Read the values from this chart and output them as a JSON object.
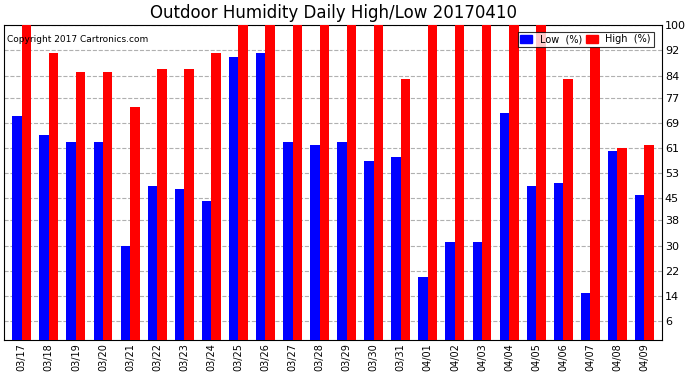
{
  "title": "Outdoor Humidity Daily High/Low 20170410",
  "copyright": "Copyright 2017 Cartronics.com",
  "dates": [
    "03/17",
    "03/18",
    "03/19",
    "03/20",
    "03/21",
    "03/22",
    "03/23",
    "03/24",
    "03/25",
    "03/26",
    "03/27",
    "03/28",
    "03/29",
    "03/30",
    "03/31",
    "04/01",
    "04/02",
    "04/03",
    "04/04",
    "04/05",
    "04/06",
    "04/07",
    "04/08",
    "04/09"
  ],
  "high": [
    100,
    91,
    85,
    85,
    74,
    86,
    86,
    91,
    100,
    100,
    100,
    100,
    100,
    100,
    83,
    100,
    100,
    100,
    100,
    100,
    83,
    93,
    61,
    62
  ],
  "low": [
    71,
    65,
    63,
    63,
    30,
    49,
    48,
    44,
    90,
    91,
    63,
    62,
    63,
    57,
    58,
    20,
    31,
    31,
    72,
    49,
    50,
    15,
    60,
    46
  ],
  "ylim": [
    0,
    100
  ],
  "yticks": [
    6,
    14,
    22,
    30,
    38,
    45,
    53,
    61,
    69,
    77,
    84,
    92,
    100
  ],
  "high_color": "#ff0000",
  "low_color": "#0000ff",
  "bg_color": "#ffffff",
  "grid_color": "#b0b0b0",
  "title_fontsize": 12,
  "bar_width": 0.35,
  "figwidth": 6.9,
  "figheight": 3.75,
  "dpi": 100
}
